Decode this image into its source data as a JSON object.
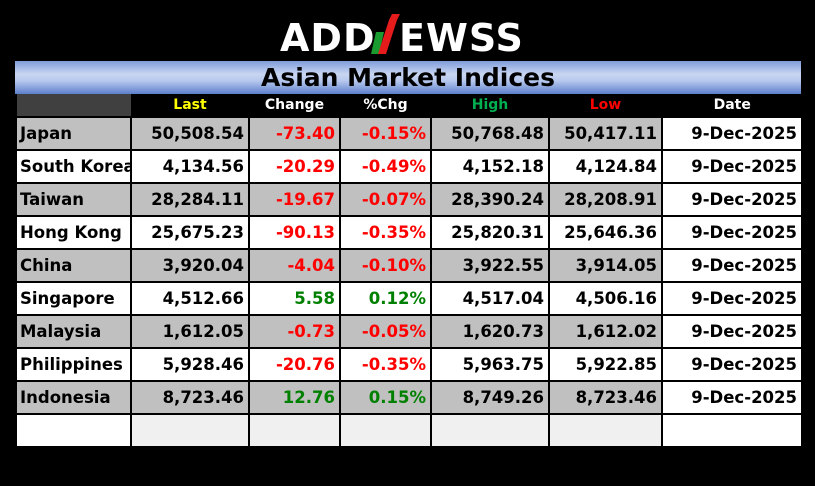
{
  "brand": {
    "logo_text": "ADDNEWSS",
    "colors": {
      "n_left": "#1a9b30",
      "n_right": "#e61c1c",
      "text": "#ffffff"
    }
  },
  "title": "Asian Market Indices",
  "table": {
    "columns": [
      "",
      "Last",
      "Change",
      "%Chg",
      "High",
      "Low",
      "Date"
    ],
    "header_colors": {
      "Last": "#ffff00",
      "Change": "#ffffff",
      "%Chg": "#ffffff",
      "High": "#00b050",
      "Low": "#ff0000",
      "Date": "#ffffff"
    },
    "rows": [
      {
        "market": "Japan",
        "last": "50,508.54",
        "change": "-73.40",
        "pct": "-0.15%",
        "high": "50,768.48",
        "low": "50,417.11",
        "date": "9-Dec-2025",
        "direction": "down"
      },
      {
        "market": "South Korea",
        "last": "4,134.56",
        "change": "-20.29",
        "pct": "-0.49%",
        "high": "4,152.18",
        "low": "4,124.84",
        "date": "9-Dec-2025",
        "direction": "down"
      },
      {
        "market": "Taiwan",
        "last": "28,284.11",
        "change": "-19.67",
        "pct": "-0.07%",
        "high": "28,390.24",
        "low": "28,208.91",
        "date": "9-Dec-2025",
        "direction": "down"
      },
      {
        "market": "Hong Kong",
        "last": "25,675.23",
        "change": "-90.13",
        "pct": "-0.35%",
        "high": "25,820.31",
        "low": "25,646.36",
        "date": "9-Dec-2025",
        "direction": "down"
      },
      {
        "market": "China",
        "last": "3,920.04",
        "change": "-4.04",
        "pct": "-0.10%",
        "high": "3,922.55",
        "low": "3,914.05",
        "date": "9-Dec-2025",
        "direction": "down"
      },
      {
        "market": "Singapore",
        "last": "4,512.66",
        "change": "5.58",
        "pct": "0.12%",
        "high": "4,517.04",
        "low": "4,506.16",
        "date": "9-Dec-2025",
        "direction": "up"
      },
      {
        "market": "Malaysia",
        "last": "1,612.05",
        "change": "-0.73",
        "pct": "-0.05%",
        "high": "1,620.73",
        "low": "1,612.02",
        "date": "9-Dec-2025",
        "direction": "down"
      },
      {
        "market": "Philippines",
        "last": "5,928.46",
        "change": "-20.76",
        "pct": "-0.35%",
        "high": "5,963.75",
        "low": "5,922.85",
        "date": "9-Dec-2025",
        "direction": "down"
      },
      {
        "market": "Indonesia",
        "last": "8,723.46",
        "change": "12.76",
        "pct": "0.15%",
        "high": "8,749.26",
        "low": "8,723.46",
        "date": "9-Dec-2025",
        "direction": "up"
      }
    ]
  }
}
